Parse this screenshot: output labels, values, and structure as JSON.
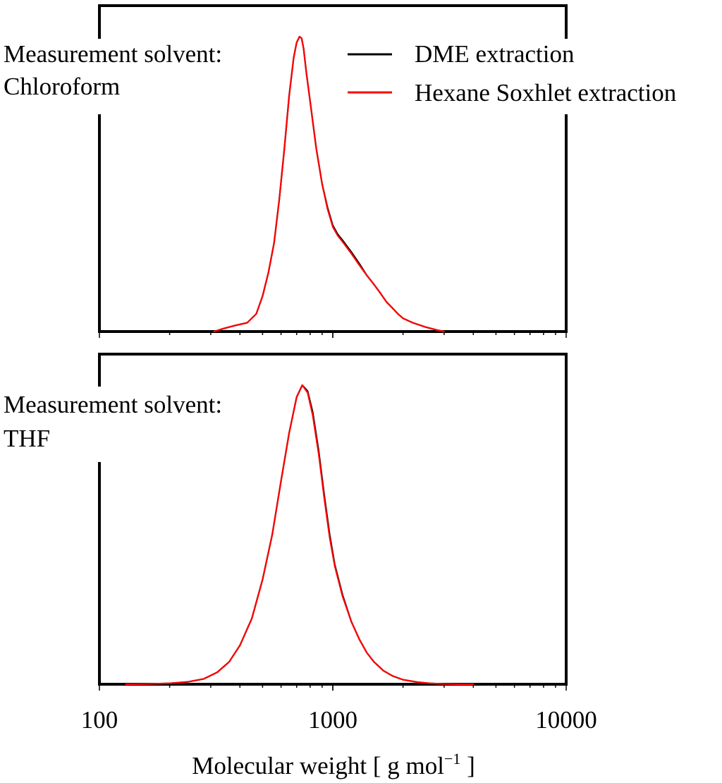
{
  "colors": {
    "dme": "#000000",
    "hexane": "#ff0000",
    "axis": "#000000"
  },
  "legend": {
    "items": [
      {
        "label": "DME extraction",
        "color": "#000000"
      },
      {
        "label": "Hexane Soxhlet extraction",
        "color": "#ff0000"
      }
    ]
  },
  "x_axis": {
    "label_main": "Molecular weight [ g mol",
    "label_sup": "−1",
    "label_end": " ]",
    "tick_labels": [
      "100",
      "1000",
      "10000"
    ]
  },
  "chart_data": [
    {
      "type": "line",
      "title": "",
      "annotation": [
        "Measurement solvent:",
        "Chloroform"
      ],
      "xlabel": "Molecular weight [ g mol−1 ]",
      "ylabel": "",
      "xscale": "log",
      "xlim": [
        100,
        10000
      ],
      "ylim": [
        0,
        1.05
      ],
      "legend_position": "top-right",
      "series": [
        {
          "name": "DME extraction",
          "color": "#000000",
          "x": [
            310,
            340,
            380,
            430,
            470,
            500,
            530,
            560,
            590,
            620,
            650,
            680,
            700,
            720,
            735,
            750,
            770,
            800,
            850,
            900,
            950,
            1000,
            1050,
            1100,
            1200,
            1300,
            1400,
            1500,
            1600,
            1700,
            1800,
            1900,
            2000,
            2200,
            2500,
            2800,
            3000
          ],
          "y": [
            0.0,
            0.01,
            0.02,
            0.03,
            0.06,
            0.12,
            0.2,
            0.3,
            0.45,
            0.62,
            0.8,
            0.93,
            0.98,
            1.0,
            0.995,
            0.96,
            0.88,
            0.78,
            0.62,
            0.5,
            0.42,
            0.36,
            0.33,
            0.31,
            0.27,
            0.23,
            0.19,
            0.16,
            0.13,
            0.1,
            0.08,
            0.06,
            0.045,
            0.03,
            0.015,
            0.005,
            0.0
          ]
        },
        {
          "name": "Hexane Soxhlet extraction",
          "color": "#ff0000",
          "x": [
            310,
            340,
            380,
            430,
            470,
            500,
            530,
            560,
            590,
            620,
            650,
            680,
            700,
            720,
            735,
            750,
            770,
            800,
            850,
            900,
            950,
            1000,
            1050,
            1100,
            1200,
            1300,
            1400,
            1500,
            1600,
            1700,
            1800,
            1900,
            2000,
            2200,
            2500,
            2800,
            3000
          ],
          "y": [
            0.0,
            0.01,
            0.02,
            0.03,
            0.06,
            0.12,
            0.2,
            0.3,
            0.45,
            0.62,
            0.8,
            0.93,
            0.98,
            1.0,
            0.995,
            0.96,
            0.88,
            0.78,
            0.62,
            0.5,
            0.415,
            0.355,
            0.325,
            0.305,
            0.265,
            0.225,
            0.19,
            0.16,
            0.13,
            0.1,
            0.08,
            0.06,
            0.045,
            0.03,
            0.015,
            0.005,
            0.0
          ]
        }
      ]
    },
    {
      "type": "line",
      "title": "",
      "annotation": [
        "Measurement solvent:",
        "THF"
      ],
      "xlabel": "Molecular weight [ g mol−1 ]",
      "ylabel": "",
      "xscale": "log",
      "xlim": [
        100,
        10000
      ],
      "ylim": [
        0,
        1.02
      ],
      "legend_position": "",
      "series": [
        {
          "name": "DME extraction",
          "color": "#000000",
          "x": [
            130,
            160,
            200,
            240,
            280,
            320,
            360,
            400,
            450,
            500,
            550,
            600,
            650,
            700,
            740,
            780,
            820,
            870,
            920,
            970,
            1020,
            1100,
            1200,
            1300,
            1400,
            1500,
            1650,
            1800,
            2000,
            2300,
            2600,
            3000,
            3500,
            4000
          ],
          "y": [
            0.0,
            0.001,
            0.003,
            0.008,
            0.018,
            0.04,
            0.075,
            0.13,
            0.22,
            0.35,
            0.5,
            0.68,
            0.84,
            0.96,
            1.0,
            0.98,
            0.91,
            0.78,
            0.63,
            0.5,
            0.4,
            0.3,
            0.21,
            0.15,
            0.105,
            0.075,
            0.045,
            0.028,
            0.015,
            0.007,
            0.003,
            0.001,
            0.0,
            0.0
          ]
        },
        {
          "name": "Hexane Soxhlet extraction",
          "color": "#ff0000",
          "x": [
            130,
            160,
            200,
            240,
            280,
            320,
            360,
            400,
            450,
            500,
            550,
            600,
            650,
            700,
            740,
            780,
            820,
            870,
            920,
            970,
            1020,
            1100,
            1200,
            1300,
            1400,
            1500,
            1650,
            1800,
            2000,
            2300,
            2600,
            3000,
            3500,
            4000
          ],
          "y": [
            0.0,
            0.001,
            0.003,
            0.008,
            0.018,
            0.04,
            0.075,
            0.13,
            0.22,
            0.35,
            0.5,
            0.68,
            0.84,
            0.96,
            1.0,
            0.975,
            0.9,
            0.77,
            0.62,
            0.49,
            0.395,
            0.295,
            0.21,
            0.15,
            0.105,
            0.075,
            0.045,
            0.028,
            0.015,
            0.007,
            0.003,
            0.001,
            0.0,
            0.0
          ]
        }
      ]
    }
  ]
}
